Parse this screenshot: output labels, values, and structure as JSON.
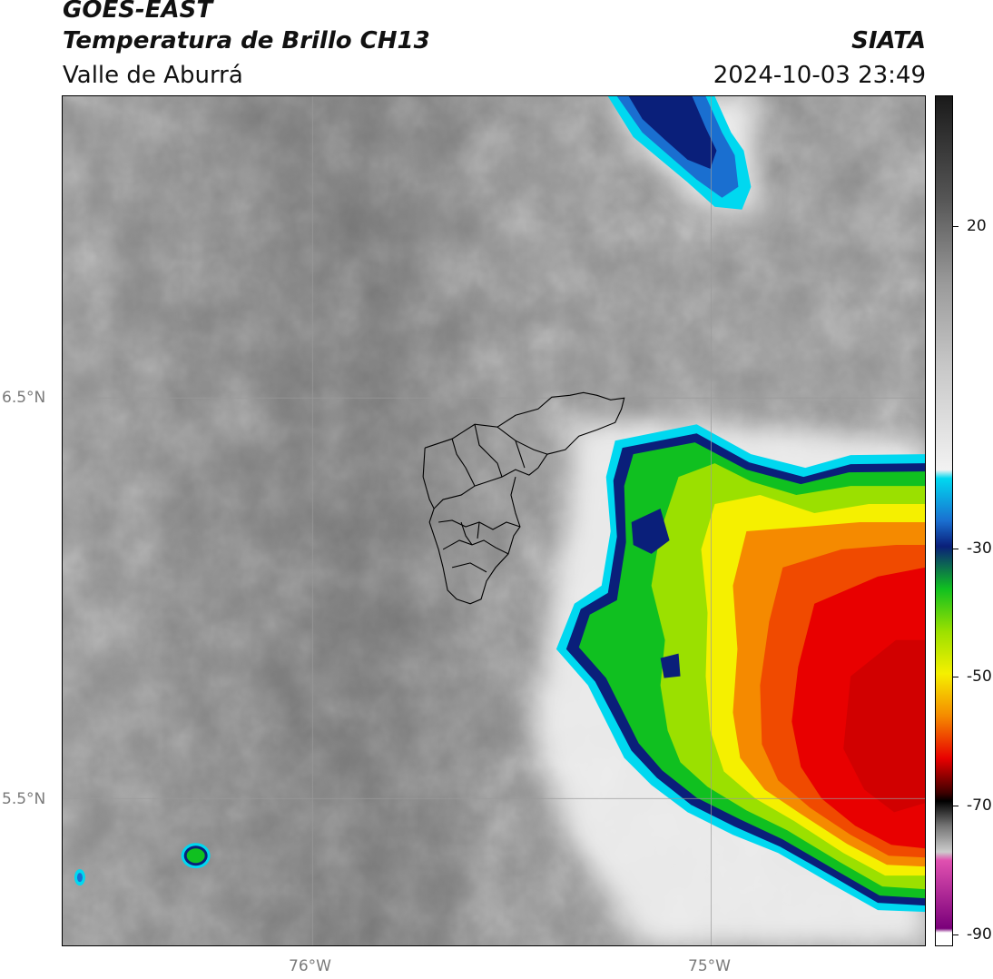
{
  "header": {
    "satellite": "GOES-EAST",
    "product": "Temperatura de Brillo CH13",
    "region": "Valle de Aburrá",
    "org": "SIATA",
    "datetime": "2024-10-03 23:49"
  },
  "axes": {
    "lat_labels": [
      "6.5°N",
      "5.5°N"
    ],
    "lon_labels": [
      "76°W",
      "75°W"
    ]
  },
  "colorbar": {
    "ticks": [
      "20",
      "-30",
      "-50",
      "-70",
      "-90"
    ],
    "colors": {
      "gray_dark": "#1a1a1a",
      "gray_light": "#f2f2f2",
      "cyan": "#00d8f0",
      "navy": "#0a1f7a",
      "green": "#10c020",
      "yellow": "#f5f000",
      "orange": "#f58a00",
      "red": "#e80000",
      "magenta": "#e050b0",
      "purple": "#7a007a"
    }
  }
}
